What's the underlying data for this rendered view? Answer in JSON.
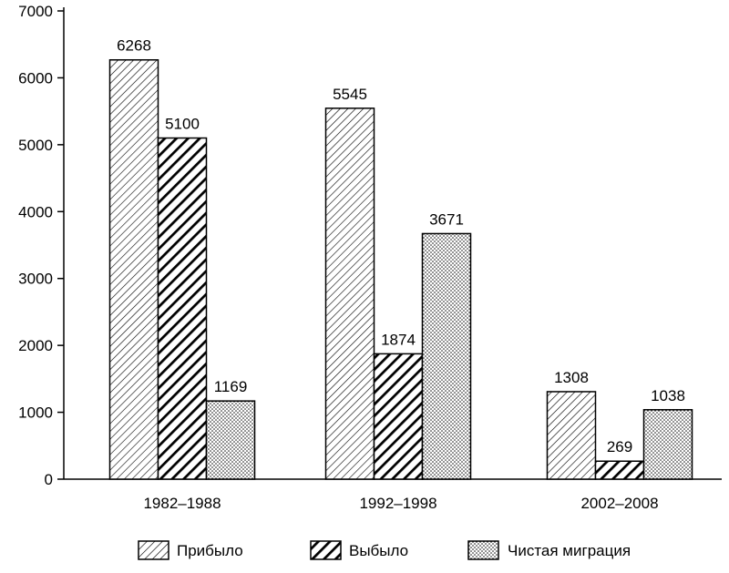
{
  "chart_data": {
    "type": "bar",
    "categories": [
      "1982–1988",
      "1992–1998",
      "2002–2008"
    ],
    "series": [
      {
        "name": "Прибыло",
        "values": [
          6268,
          5545,
          1308
        ],
        "pattern": "diagonal-light"
      },
      {
        "name": "Выбыло",
        "values": [
          5100,
          1874,
          269
        ],
        "pattern": "diagonal-heavy"
      },
      {
        "name": "Чистая миграция",
        "values": [
          1169,
          3671,
          1038
        ],
        "pattern": "dots"
      }
    ],
    "ylim": [
      0,
      7000
    ],
    "yticks": [
      0,
      1000,
      2000,
      3000,
      4000,
      5000,
      6000,
      7000
    ],
    "ytick_labels": [
      "0",
      "1000",
      "2000",
      "3000",
      "4000",
      "5000",
      "6000",
      "7000"
    ],
    "legend_position": "bottom",
    "grid": false
  }
}
